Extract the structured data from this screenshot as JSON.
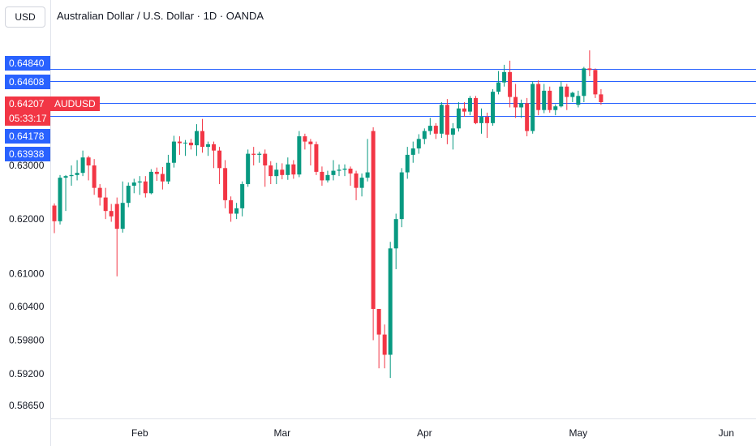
{
  "currency": "USD",
  "legend": "Australian Dollar / U.S. Dollar · 1D · OANDA",
  "symbol": "AUDUSD",
  "last_price": "0.64207",
  "countdown": "05:33:17",
  "colors": {
    "up": "#089981",
    "down": "#f23645",
    "level": "#2962ff",
    "grid": "#e0e3eb"
  },
  "chart_data": {
    "type": "candlestick",
    "title": "Australian Dollar / U.S. Dollar · 1D · OANDA",
    "ylabel": "USD",
    "yscale": "log",
    "ylim": [
      0.5842,
      0.6555
    ],
    "y_ticks": [
      "0.63000",
      "0.62000",
      "0.61000",
      "0.60400",
      "0.59800",
      "0.59200",
      "0.58650"
    ],
    "x_ticks": [
      {
        "label": "Feb",
        "index": 15
      },
      {
        "label": "Mar",
        "index": 40
      },
      {
        "label": "Apr",
        "index": 65
      },
      {
        "label": "May",
        "index": 92
      },
      {
        "label": "Jun",
        "index": 118
      }
    ],
    "horizontal_levels": [
      {
        "value": 0.6484,
        "label": "0.64840"
      },
      {
        "value": 0.64608,
        "label": "0.64608"
      },
      {
        "value": 0.64178,
        "label": "0.64178"
      },
      {
        "value": 0.63938,
        "label": "0.63938"
      }
    ],
    "candles": [
      [
        0.6225,
        0.6229,
        0.6174,
        0.6196
      ],
      [
        0.6196,
        0.6282,
        0.619,
        0.6277
      ],
      [
        0.6277,
        0.6282,
        0.6215,
        0.628
      ],
      [
        0.628,
        0.63,
        0.6262,
        0.6282
      ],
      [
        0.6282,
        0.631,
        0.6272,
        0.6286
      ],
      [
        0.6286,
        0.6328,
        0.628,
        0.6315
      ],
      [
        0.6315,
        0.6318,
        0.6272,
        0.63
      ],
      [
        0.63,
        0.6312,
        0.6245,
        0.6258
      ],
      [
        0.6258,
        0.6265,
        0.6225,
        0.624
      ],
      [
        0.624,
        0.6258,
        0.62,
        0.6215
      ],
      [
        0.6215,
        0.6228,
        0.6195,
        0.6205
      ],
      [
        0.6228,
        0.624,
        0.6095,
        0.6182
      ],
      [
        0.6182,
        0.627,
        0.6175,
        0.623
      ],
      [
        0.623,
        0.6268,
        0.6222,
        0.6262
      ],
      [
        0.6262,
        0.6275,
        0.6248,
        0.6268
      ],
      [
        0.6268,
        0.628,
        0.6245,
        0.627
      ],
      [
        0.627,
        0.628,
        0.624,
        0.6248
      ],
      [
        0.6248,
        0.6293,
        0.6246,
        0.6288
      ],
      [
        0.6288,
        0.6296,
        0.6271,
        0.6284
      ],
      [
        0.6284,
        0.6297,
        0.6255,
        0.627
      ],
      [
        0.627,
        0.632,
        0.6265,
        0.6305
      ],
      [
        0.6305,
        0.6356,
        0.6296,
        0.6345
      ],
      [
        0.6345,
        0.6355,
        0.632,
        0.6342
      ],
      [
        0.6342,
        0.6348,
        0.6318,
        0.6343
      ],
      [
        0.6343,
        0.635,
        0.633,
        0.6338
      ],
      [
        0.6338,
        0.6378,
        0.6318,
        0.6365
      ],
      [
        0.6365,
        0.6388,
        0.6324,
        0.6335
      ],
      [
        0.6335,
        0.6345,
        0.6318,
        0.634
      ],
      [
        0.634,
        0.6345,
        0.6295,
        0.6328
      ],
      [
        0.6328,
        0.6335,
        0.6265,
        0.6295
      ],
      [
        0.6295,
        0.631,
        0.622,
        0.6235
      ],
      [
        0.6235,
        0.6242,
        0.6195,
        0.621
      ],
      [
        0.621,
        0.623,
        0.62,
        0.622
      ],
      [
        0.622,
        0.627,
        0.6205,
        0.6265
      ],
      [
        0.6265,
        0.633,
        0.626,
        0.6322
      ],
      [
        0.6322,
        0.6335,
        0.63,
        0.632
      ],
      [
        0.632,
        0.6326,
        0.6305,
        0.6322
      ],
      [
        0.6322,
        0.633,
        0.626,
        0.63
      ],
      [
        0.63,
        0.6308,
        0.6265,
        0.628
      ],
      [
        0.628,
        0.6305,
        0.6265,
        0.6292
      ],
      [
        0.6292,
        0.6304,
        0.6274,
        0.6282
      ],
      [
        0.6282,
        0.6315,
        0.6273,
        0.6302
      ],
      [
        0.6302,
        0.631,
        0.6275,
        0.6283
      ],
      [
        0.6283,
        0.6365,
        0.6278,
        0.6355
      ],
      [
        0.6355,
        0.636,
        0.633,
        0.6345
      ],
      [
        0.6345,
        0.635,
        0.63,
        0.634
      ],
      [
        0.634,
        0.6345,
        0.6282,
        0.6288
      ],
      [
        0.6288,
        0.6298,
        0.6262,
        0.6272
      ],
      [
        0.6272,
        0.629,
        0.6268,
        0.6282
      ],
      [
        0.6282,
        0.631,
        0.6272,
        0.629
      ],
      [
        0.629,
        0.6302,
        0.628,
        0.6292
      ],
      [
        0.6292,
        0.6302,
        0.628,
        0.6294
      ],
      [
        0.6294,
        0.6298,
        0.6262,
        0.6285
      ],
      [
        0.6285,
        0.629,
        0.6235,
        0.6258
      ],
      [
        0.6258,
        0.6285,
        0.6242,
        0.6277
      ],
      [
        0.6277,
        0.635,
        0.627,
        0.6287
      ],
      [
        0.6365,
        0.6372,
        0.598,
        0.6036
      ],
      [
        0.6036,
        0.6035,
        0.593,
        0.599
      ],
      [
        0.599,
        0.6008,
        0.593,
        0.5954
      ],
      [
        0.5954,
        0.6158,
        0.5913,
        0.6146
      ],
      [
        0.6146,
        0.621,
        0.6108,
        0.62
      ],
      [
        0.62,
        0.6295,
        0.6185,
        0.6287
      ],
      [
        0.6287,
        0.6335,
        0.6275,
        0.632
      ],
      [
        0.632,
        0.6345,
        0.6305,
        0.6332
      ],
      [
        0.6332,
        0.6359,
        0.6322,
        0.635
      ],
      [
        0.635,
        0.637,
        0.634,
        0.6365
      ],
      [
        0.6365,
        0.639,
        0.6358,
        0.6375
      ],
      [
        0.6375,
        0.638,
        0.635,
        0.636
      ],
      [
        0.636,
        0.642,
        0.6352,
        0.6415
      ],
      [
        0.6415,
        0.6426,
        0.634,
        0.6358
      ],
      [
        0.6358,
        0.638,
        0.633,
        0.637
      ],
      [
        0.637,
        0.642,
        0.6364,
        0.6408
      ],
      [
        0.6408,
        0.642,
        0.6392,
        0.6402
      ],
      [
        0.6402,
        0.6432,
        0.6395,
        0.6428
      ],
      [
        0.6428,
        0.6432,
        0.6378,
        0.638
      ],
      [
        0.638,
        0.6408,
        0.636,
        0.6392
      ],
      [
        0.6392,
        0.64,
        0.6352,
        0.638
      ],
      [
        0.638,
        0.6445,
        0.6375,
        0.644
      ],
      [
        0.644,
        0.648,
        0.6435,
        0.6458
      ],
      [
        0.6458,
        0.6492,
        0.645,
        0.6478
      ],
      [
        0.6478,
        0.65,
        0.641,
        0.643
      ],
      [
        0.643,
        0.6455,
        0.639,
        0.641
      ],
      [
        0.641,
        0.6425,
        0.639,
        0.6418
      ],
      [
        0.6418,
        0.6428,
        0.6355,
        0.6365
      ],
      [
        0.6365,
        0.646,
        0.636,
        0.6455
      ],
      [
        0.6455,
        0.6462,
        0.6395,
        0.6405
      ],
      [
        0.6405,
        0.6455,
        0.6399,
        0.6442
      ],
      [
        0.6442,
        0.645,
        0.64,
        0.6405
      ],
      [
        0.6405,
        0.6416,
        0.6395,
        0.6412
      ],
      [
        0.6412,
        0.646,
        0.641,
        0.645
      ],
      [
        0.645,
        0.6455,
        0.6405,
        0.643
      ],
      [
        0.643,
        0.644,
        0.642,
        0.6438
      ],
      [
        0.6415,
        0.6442,
        0.641,
        0.6432
      ],
      [
        0.6432,
        0.6488,
        0.642,
        0.6485
      ],
      [
        0.6485,
        0.652,
        0.647,
        0.6482
      ],
      [
        0.6482,
        0.6485,
        0.6428,
        0.6435
      ],
      [
        0.6435,
        0.6445,
        0.6415,
        0.642
      ]
    ]
  }
}
